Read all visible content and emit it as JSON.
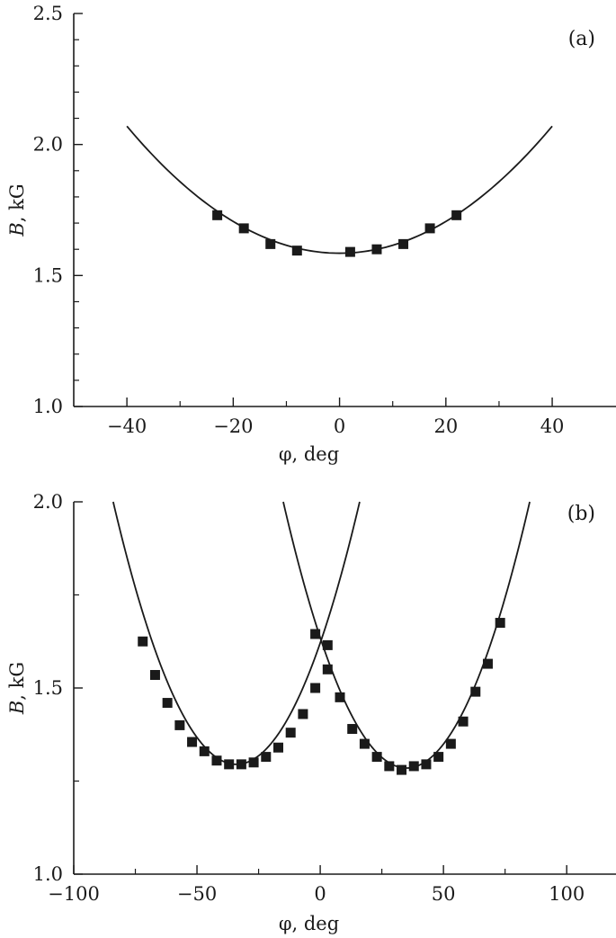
{
  "chart_data": [
    {
      "type": "scatter",
      "panel_label": "(a)",
      "xlabel": "φ, deg",
      "ylabel_italic": "B",
      "ylabel_rest": ", kG",
      "xlim": [
        -50,
        52
      ],
      "ylim": [
        1.0,
        2.5
      ],
      "xticks": [
        -40,
        -20,
        0,
        20,
        40
      ],
      "xticks_minor": [
        -30,
        -10,
        10,
        30
      ],
      "xtick_labels": [
        "−40",
        "−20",
        "0",
        "20",
        "40"
      ],
      "yticks": [
        1.0,
        1.5,
        2.0,
        2.5
      ],
      "yticks_minor": [
        1.1,
        1.2,
        1.3,
        1.4,
        1.6,
        1.7,
        1.8,
        1.9,
        2.1,
        2.2,
        2.3,
        2.4
      ],
      "ytick_labels": [
        "1.0",
        "1.5",
        "2.0",
        "2.5"
      ],
      "grid": false,
      "series": [
        {
          "marker": "square",
          "x": [
            -23,
            -18,
            -13,
            -8,
            2,
            7,
            12,
            17,
            22
          ],
          "y": [
            1.73,
            1.68,
            1.62,
            1.595,
            1.59,
            1.6,
            1.62,
            1.68,
            1.73
          ]
        }
      ],
      "fits": [
        {
          "model": "parabola",
          "x_range": [
            -40,
            40
          ],
          "vertex_x": 0,
          "vertex_y": 1.585,
          "end_y": 2.07
        }
      ]
    },
    {
      "type": "scatter",
      "panel_label": "(b)",
      "xlabel": "φ, deg",
      "ylabel_italic": "B",
      "ylabel_rest": ", kG",
      "xlim": [
        -100,
        120
      ],
      "ylim": [
        1.0,
        2.0
      ],
      "xticks": [
        -100,
        -50,
        0,
        50,
        100
      ],
      "xticks_minor": [
        -75,
        -25,
        25,
        75
      ],
      "xtick_labels": [
        "−100",
        "−50",
        "0",
        "50",
        "100"
      ],
      "yticks": [
        1.0,
        1.5,
        2.0
      ],
      "yticks_minor": [
        1.25,
        1.75
      ],
      "ytick_labels": [
        "1.0",
        "1.5",
        "2.0"
      ],
      "grid": false,
      "series": [
        {
          "marker": "square",
          "x": [
            -72,
            -67,
            -62,
            -57,
            -52,
            -47,
            -42,
            -37,
            -32,
            -27,
            -22,
            -17,
            -12,
            -7,
            -2,
            -2,
            3,
            3,
            8,
            13,
            18,
            23,
            28,
            33,
            38,
            43,
            48,
            53,
            58,
            63,
            68,
            73
          ],
          "y": [
            1.625,
            1.535,
            1.46,
            1.4,
            1.355,
            1.33,
            1.305,
            1.295,
            1.295,
            1.3,
            1.315,
            1.34,
            1.38,
            1.43,
            1.5,
            1.645,
            1.55,
            1.615,
            1.475,
            1.39,
            1.35,
            1.315,
            1.29,
            1.28,
            1.29,
            1.295,
            1.315,
            1.35,
            1.41,
            1.49,
            1.565,
            1.675
          ]
        }
      ],
      "fits": [
        {
          "model": "parabola",
          "x_range": [
            -84,
            16
          ],
          "vertex_x": -34,
          "vertex_y": 1.295,
          "end_y": 2.0
        },
        {
          "model": "parabola",
          "x_range": [
            -15,
            85
          ],
          "vertex_x": 35,
          "vertex_y": 1.285,
          "end_y": 2.0
        }
      ]
    }
  ]
}
